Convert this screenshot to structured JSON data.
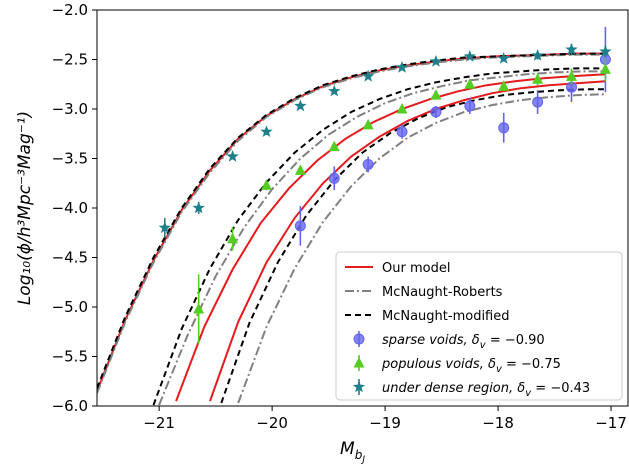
{
  "chart_data": {
    "type": "scatter",
    "xlabel": "M",
    "xlabel_sub": "b",
    "xlabel_subsub": "J",
    "ylabel": "Log₁₀(ϕ/h³Mpc⁻³Mag⁻¹)",
    "xlim": [
      -21.55,
      -16.85
    ],
    "ylim": [
      -6.0,
      -2.0
    ],
    "xticks": [
      -21,
      -20,
      -19,
      -18,
      -17
    ],
    "yticks": [
      -6.0,
      -5.5,
      -5.0,
      -4.5,
      -4.0,
      -3.5,
      -3.0,
      -2.5,
      -2.0
    ],
    "xtick_labels": [
      "−21",
      "−20",
      "−19",
      "−18",
      "−17"
    ],
    "ytick_labels": [
      "−6.0",
      "−5.5",
      "−5.0",
      "−4.5",
      "−4.0",
      "−3.5",
      "−3.0",
      "−2.5",
      "−2.0"
    ],
    "legend_position": "lower right",
    "legend": [
      {
        "label": "Our model",
        "kind": "line",
        "color": "#e41a1c",
        "dash": ""
      },
      {
        "label": "McNaught-Roberts",
        "kind": "line",
        "color": "#808080",
        "dash": "9,3,2,3"
      },
      {
        "label": "McNaught-modified",
        "kind": "line",
        "color": "#000000",
        "dash": "6,4"
      },
      {
        "label_italic": "sparse voids,",
        "label_math": "δ",
        "label_sub": "v",
        "label_value": " = −0.90",
        "kind": "marker",
        "marker": "circle",
        "color": "#6464f0"
      },
      {
        "label_italic": "populous voids,",
        "label_math": "δ",
        "label_sub": "v",
        "label_value": " = −0.75",
        "kind": "marker",
        "marker": "triangle",
        "color": "#55cc22"
      },
      {
        "label_italic": "under dense region,",
        "label_math": "δ",
        "label_sub": "v",
        "label_value": " = −0.43",
        "kind": "marker",
        "marker": "star",
        "color": "#1f7f8a"
      }
    ],
    "series": [
      {
        "name": "sparse voids, δv = −0.90",
        "kind": "points",
        "marker": "circle",
        "color": "#6464f0",
        "x": [
          -19.75,
          -19.45,
          -19.15,
          -18.85,
          -18.55,
          -18.25,
          -17.95,
          -17.65,
          -17.35,
          -17.05
        ],
        "y": [
          -4.18,
          -3.7,
          -3.56,
          -3.23,
          -3.03,
          -2.97,
          -3.19,
          -2.93,
          -2.78,
          -2.5
        ],
        "yerr": [
          0.2,
          0.12,
          0.08,
          0.07,
          0.06,
          0.08,
          0.15,
          0.12,
          0.15,
          0.33
        ]
      },
      {
        "name": "populous voids, δv = −0.75",
        "kind": "points",
        "marker": "triangle",
        "color": "#55cc22",
        "x": [
          -20.65,
          -20.35,
          -20.05,
          -19.75,
          -19.45,
          -19.15,
          -18.85,
          -18.55,
          -18.25,
          -17.95,
          -17.65,
          -17.35,
          -17.05
        ],
        "y": [
          -5.02,
          -4.31,
          -3.77,
          -3.62,
          -3.38,
          -3.16,
          -3.0,
          -2.86,
          -2.75,
          -2.77,
          -2.7,
          -2.67,
          -2.6
        ],
        "yerr": [
          0.35,
          0.12,
          0.05,
          0.04,
          0.04,
          0.04,
          0.04,
          0.04,
          0.04,
          0.05,
          0.06,
          0.08,
          0.12
        ]
      },
      {
        "name": "under dense region, δv = −0.43",
        "kind": "points",
        "marker": "star",
        "color": "#1f7f8a",
        "x": [
          -20.95,
          -20.65,
          -20.35,
          -20.05,
          -19.75,
          -19.45,
          -19.15,
          -18.85,
          -18.55,
          -18.25,
          -17.95,
          -17.65,
          -17.35,
          -17.05
        ],
        "y": [
          -4.2,
          -4.0,
          -3.48,
          -3.23,
          -2.97,
          -2.82,
          -2.67,
          -2.58,
          -2.52,
          -2.47,
          -2.49,
          -2.46,
          -2.4,
          -2.42
        ],
        "yerr": [
          0.1,
          0.06,
          0.03,
          0.03,
          0.02,
          0.02,
          0.02,
          0.02,
          0.02,
          0.02,
          0.03,
          0.04,
          0.06,
          0.06
        ]
      },
      {
        "name": "Our model (under dense)",
        "kind": "line",
        "color": "#e41a1c",
        "dash": "",
        "x": [
          -21.55,
          -21.3,
          -21.05,
          -20.8,
          -20.55,
          -20.3,
          -20.05,
          -19.8,
          -19.55,
          -19.3,
          -19.05,
          -18.8,
          -18.55,
          -18.3,
          -18.05,
          -17.8,
          -17.55,
          -17.3,
          -17.05
        ],
        "y": [
          -5.85,
          -5.13,
          -4.53,
          -4.02,
          -3.62,
          -3.3,
          -3.07,
          -2.9,
          -2.77,
          -2.68,
          -2.61,
          -2.56,
          -2.52,
          -2.49,
          -2.47,
          -2.46,
          -2.45,
          -2.44,
          -2.44
        ]
      },
      {
        "name": "McNaught-Roberts (under dense)",
        "kind": "line",
        "color": "#808080",
        "dash": "9,3,2,3",
        "x": [
          -21.55,
          -21.3,
          -21.05,
          -20.8,
          -20.55,
          -20.3,
          -20.05,
          -19.8,
          -19.55,
          -19.3,
          -19.05,
          -18.8,
          -18.55,
          -18.3,
          -18.05,
          -17.8,
          -17.55,
          -17.3,
          -17.05
        ],
        "y": [
          -5.87,
          -5.15,
          -4.55,
          -4.04,
          -3.64,
          -3.32,
          -3.08,
          -2.91,
          -2.78,
          -2.69,
          -2.62,
          -2.57,
          -2.53,
          -2.5,
          -2.48,
          -2.47,
          -2.46,
          -2.45,
          -2.45
        ]
      },
      {
        "name": "McNaught-modified (under dense)",
        "kind": "line",
        "color": "#000000",
        "dash": "6,4",
        "x": [
          -21.55,
          -21.3,
          -21.05,
          -20.8,
          -20.55,
          -20.3,
          -20.05,
          -19.8,
          -19.55,
          -19.3,
          -19.05,
          -18.8,
          -18.55,
          -18.3,
          -18.05,
          -17.8,
          -17.55,
          -17.3,
          -17.05
        ],
        "y": [
          -5.82,
          -5.1,
          -4.5,
          -4.0,
          -3.6,
          -3.29,
          -3.06,
          -2.89,
          -2.76,
          -2.67,
          -2.6,
          -2.55,
          -2.51,
          -2.48,
          -2.47,
          -2.46,
          -2.45,
          -2.44,
          -2.44
        ]
      },
      {
        "name": "Our model (populous)",
        "kind": "line",
        "color": "#e41a1c",
        "dash": "",
        "x": [
          -20.85,
          -20.6,
          -20.35,
          -20.1,
          -19.85,
          -19.6,
          -19.35,
          -19.1,
          -18.85,
          -18.6,
          -18.35,
          -18.1,
          -17.85,
          -17.6,
          -17.35,
          -17.05
        ],
        "y": [
          -5.95,
          -5.2,
          -4.62,
          -4.15,
          -3.8,
          -3.52,
          -3.3,
          -3.13,
          -3.0,
          -2.9,
          -2.82,
          -2.76,
          -2.72,
          -2.69,
          -2.67,
          -2.65
        ]
      },
      {
        "name": "McNaught-Roberts (populous)",
        "kind": "line",
        "color": "#808080",
        "dash": "9,3,2,3",
        "x": [
          -21.0,
          -20.75,
          -20.5,
          -20.25,
          -20.0,
          -19.75,
          -19.5,
          -19.25,
          -19.0,
          -18.75,
          -18.5,
          -18.25,
          -18.0,
          -17.75,
          -17.5,
          -17.25,
          -17.05
        ],
        "y": [
          -5.99,
          -5.29,
          -4.69,
          -4.2,
          -3.81,
          -3.5,
          -3.26,
          -3.08,
          -2.94,
          -2.84,
          -2.77,
          -2.71,
          -2.68,
          -2.65,
          -2.63,
          -2.62,
          -2.62
        ]
      },
      {
        "name": "McNaught-modified (populous)",
        "kind": "line",
        "color": "#000000",
        "dash": "6,4",
        "x": [
          -21.05,
          -20.8,
          -20.55,
          -20.3,
          -20.05,
          -19.8,
          -19.55,
          -19.3,
          -19.05,
          -18.8,
          -18.55,
          -18.3,
          -18.05,
          -17.8,
          -17.55,
          -17.3,
          -17.05
        ],
        "y": [
          -5.99,
          -5.22,
          -4.61,
          -4.12,
          -3.74,
          -3.44,
          -3.21,
          -3.03,
          -2.9,
          -2.8,
          -2.73,
          -2.68,
          -2.64,
          -2.62,
          -2.6,
          -2.59,
          -2.59
        ]
      },
      {
        "name": "Our model (sparse)",
        "kind": "line",
        "color": "#e41a1c",
        "dash": "",
        "x": [
          -20.55,
          -20.3,
          -20.05,
          -19.8,
          -19.55,
          -19.3,
          -19.05,
          -18.8,
          -18.55,
          -18.3,
          -18.05,
          -17.8,
          -17.55,
          -17.3,
          -17.05
        ],
        "y": [
          -5.95,
          -5.15,
          -4.55,
          -4.1,
          -3.75,
          -3.48,
          -3.28,
          -3.12,
          -3.0,
          -2.91,
          -2.84,
          -2.79,
          -2.76,
          -2.74,
          -2.72
        ]
      },
      {
        "name": "McNaught-Roberts (sparse)",
        "kind": "line",
        "color": "#808080",
        "dash": "9,3,2,3",
        "x": [
          -20.3,
          -20.05,
          -19.8,
          -19.55,
          -19.3,
          -19.05,
          -18.8,
          -18.55,
          -18.3,
          -18.05,
          -17.8,
          -17.55,
          -17.3,
          -17.05
        ],
        "y": [
          -5.97,
          -5.2,
          -4.61,
          -4.14,
          -3.78,
          -3.5,
          -3.29,
          -3.14,
          -3.03,
          -2.96,
          -2.91,
          -2.88,
          -2.86,
          -2.85
        ]
      },
      {
        "name": "McNaught-modified (sparse)",
        "kind": "line",
        "color": "#000000",
        "dash": "6,4",
        "x": [
          -20.45,
          -20.2,
          -19.95,
          -19.7,
          -19.45,
          -19.2,
          -18.95,
          -18.7,
          -18.45,
          -18.2,
          -17.95,
          -17.7,
          -17.45,
          -17.2,
          -17.05
        ],
        "y": [
          -5.97,
          -5.16,
          -4.55,
          -4.08,
          -3.72,
          -3.44,
          -3.24,
          -3.09,
          -2.98,
          -2.91,
          -2.86,
          -2.83,
          -2.81,
          -2.8,
          -2.8
        ]
      }
    ]
  }
}
